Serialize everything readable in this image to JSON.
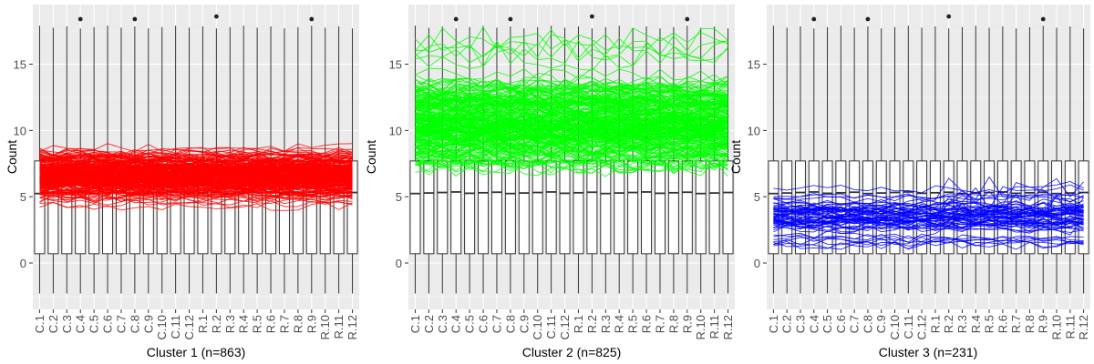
{
  "chart_data": [
    {
      "type": "boxplot+line",
      "title": "",
      "xlabel": "Cluster 1 (n=863)",
      "ylabel": "Count",
      "ylim": [
        -3.5,
        19.5
      ],
      "yticks": [
        0,
        5,
        10,
        15
      ],
      "grid": true,
      "line_color": "#ff0000",
      "categories": [
        "C.1",
        "C.2",
        "C.3",
        "C.4",
        "C.5",
        "C.6",
        "C.7",
        "C.8",
        "C.9",
        "C.10",
        "C.11",
        "C.12",
        "R.1",
        "R.2",
        "R.3",
        "R.4",
        "R.5",
        "R.6",
        "R.7",
        "R.8",
        "R.9",
        "R.10",
        "R.11",
        "R.12"
      ],
      "box": {
        "median": 5.3,
        "q1": 0.7,
        "q3": 7.7,
        "whisker_low": -2.3,
        "whisker_high": 17.9
      },
      "outliers": [
        {
          "x": "C.4",
          "y": 18.4
        },
        {
          "x": "C.8",
          "y": 18.4
        },
        {
          "x": "R.2",
          "y": 18.6
        },
        {
          "x": "R.9",
          "y": 18.4
        }
      ],
      "profile_band": {
        "center": 6.6,
        "spread": 1.9,
        "count": 863
      }
    },
    {
      "type": "boxplot+line",
      "title": "",
      "xlabel": "Cluster 2 (n=825)",
      "ylabel": "Count",
      "ylim": [
        -3.5,
        19.5
      ],
      "yticks": [
        0,
        5,
        10,
        15
      ],
      "grid": true,
      "line_color": "#00ff00",
      "categories": [
        "C.1",
        "C.2",
        "C.3",
        "C.4",
        "C.5",
        "C.6",
        "C.7",
        "C.8",
        "C.9",
        "C.10",
        "C.11",
        "C.12",
        "R.1",
        "R.2",
        "R.3",
        "R.4",
        "R.5",
        "R.6",
        "R.7",
        "R.8",
        "R.9",
        "R.10",
        "R.11",
        "R.12"
      ],
      "box": {
        "median": 5.3,
        "q1": 0.7,
        "q3": 7.7,
        "whisker_low": -2.3,
        "whisker_high": 17.9
      },
      "outliers": [
        {
          "x": "C.4",
          "y": 18.4
        },
        {
          "x": "C.8",
          "y": 18.4
        },
        {
          "x": "R.2",
          "y": 18.6
        },
        {
          "x": "R.9",
          "y": 18.4
        }
      ],
      "profile_band": {
        "center": 10.5,
        "spread": 3.3,
        "count": 825
      }
    },
    {
      "type": "boxplot+line",
      "title": "",
      "xlabel": "Cluster 3 (n=231)",
      "ylabel": "Count",
      "ylim": [
        -3.5,
        19.5
      ],
      "yticks": [
        0,
        5,
        10,
        15
      ],
      "grid": true,
      "line_color": "#0000ff",
      "categories": [
        "C.1",
        "C.2",
        "C.3",
        "C.4",
        "C.5",
        "C.6",
        "C.7",
        "C.8",
        "C.9",
        "C.10",
        "C.11",
        "C.12",
        "R.1",
        "R.2",
        "R.3",
        "R.4",
        "R.5",
        "R.6",
        "R.7",
        "R.8",
        "R.9",
        "R.10",
        "R.11",
        "R.12"
      ],
      "box": {
        "median": 5.3,
        "q1": 0.7,
        "q3": 7.7,
        "whisker_low": -2.3,
        "whisker_high": 17.9
      },
      "outliers": [
        {
          "x": "C.4",
          "y": 18.4
        },
        {
          "x": "C.8",
          "y": 18.4
        },
        {
          "x": "R.2",
          "y": 18.6
        },
        {
          "x": "R.9",
          "y": 18.4
        }
      ],
      "profile_band": {
        "center": 3.5,
        "spread": 1.9,
        "count": 231
      }
    }
  ]
}
